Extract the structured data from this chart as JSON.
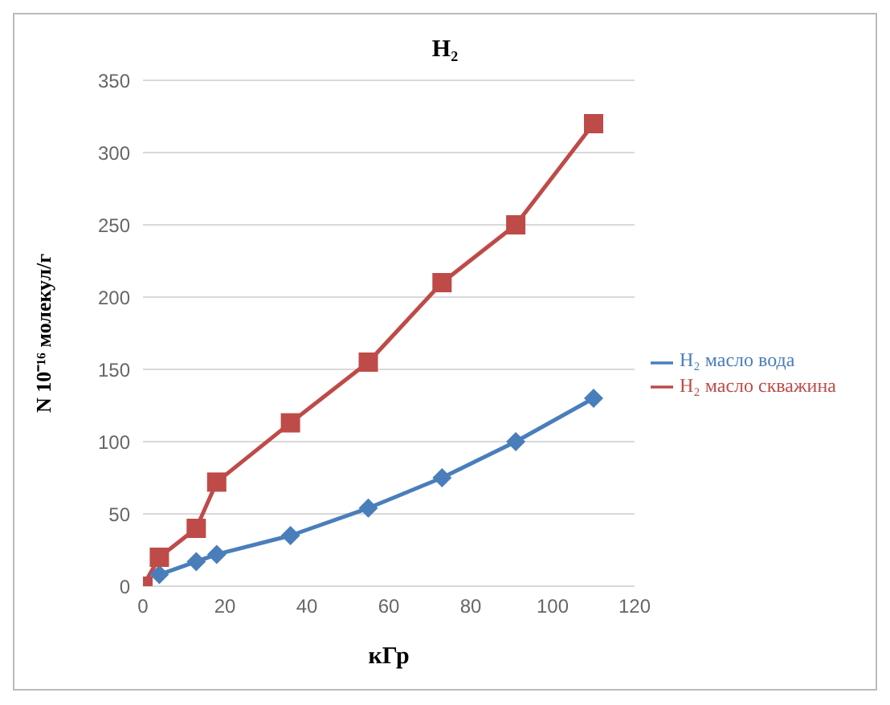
{
  "chart_data": {
    "type": "line",
    "title": "H₂",
    "xlabel": "кГр",
    "ylabel": "N 10⁻¹⁶ молекул/г",
    "xlim": [
      0,
      120
    ],
    "xticks": [
      0,
      20,
      40,
      60,
      80,
      100,
      120
    ],
    "ylim": [
      0,
      350
    ],
    "yticks": [
      0,
      50,
      100,
      150,
      200,
      250,
      300,
      350
    ],
    "grid": "y",
    "legend": "right",
    "line_style": "solid",
    "series": [
      {
        "name": "H₂ масло вода",
        "color": "#4a7ebb",
        "marker": "diamond",
        "x": [
          4,
          13,
          18,
          36,
          55,
          73,
          91,
          110
        ],
        "values": [
          8,
          17,
          22,
          35,
          54,
          75,
          100,
          130
        ]
      },
      {
        "name": "H₂ масло скважина",
        "color": "#be4b48",
        "marker": "square",
        "x": [
          0,
          4,
          13,
          18,
          36,
          55,
          73,
          91,
          110
        ],
        "values": [
          0,
          20,
          40,
          72,
          113,
          155,
          210,
          250,
          320
        ]
      }
    ]
  }
}
